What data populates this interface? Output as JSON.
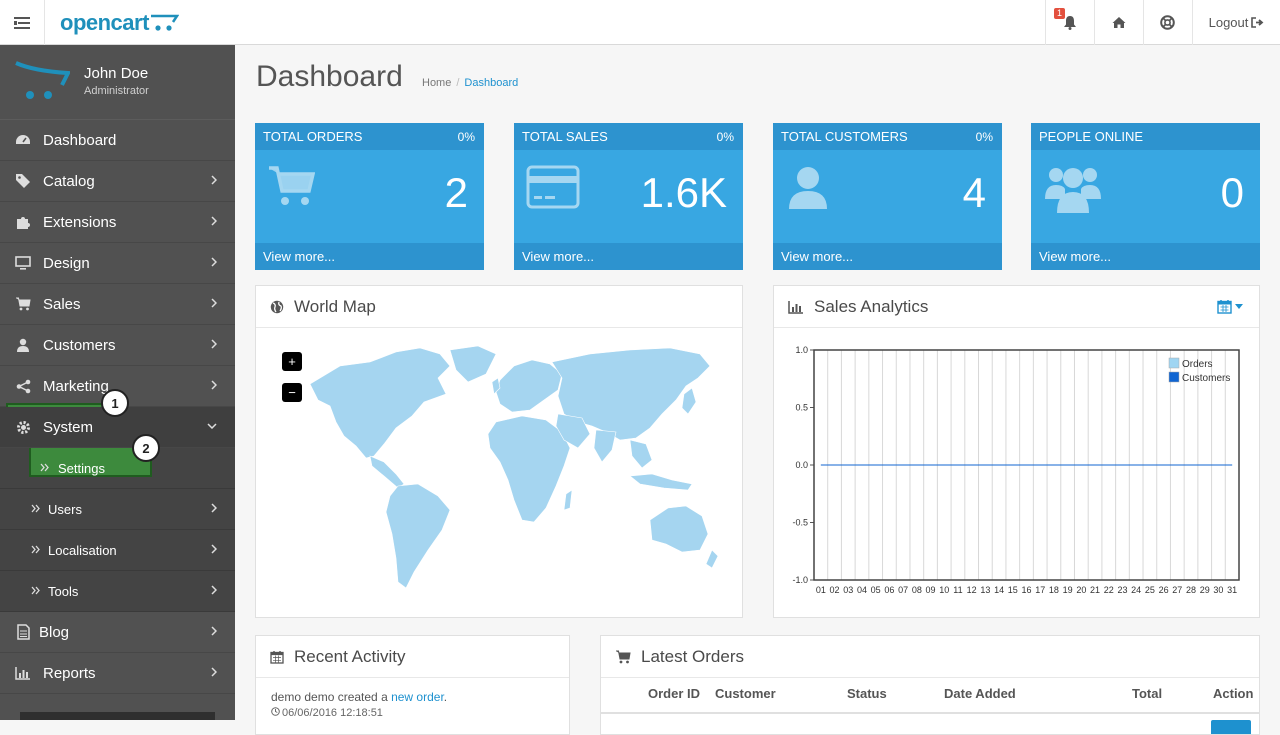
{
  "header": {
    "logo_text": "opencart",
    "notification_count": "1",
    "logout_label": "Logout"
  },
  "sidebar": {
    "profile": {
      "name": "John Doe",
      "role": "Administrator"
    },
    "items": [
      {
        "label": "Dashboard",
        "icon": "dashboard-icon"
      },
      {
        "label": "Catalog",
        "icon": "tags-icon"
      },
      {
        "label": "Extensions",
        "icon": "puzzle-icon"
      },
      {
        "label": "Design",
        "icon": "monitor-icon"
      },
      {
        "label": "Sales",
        "icon": "cart-icon"
      },
      {
        "label": "Customers",
        "icon": "user-icon"
      },
      {
        "label": "Marketing",
        "icon": "share-icon"
      },
      {
        "label": "System",
        "icon": "gear-icon"
      },
      {
        "label": "Blog",
        "icon": "document-icon"
      },
      {
        "label": "Reports",
        "icon": "bar-chart-icon"
      }
    ],
    "system_sub": [
      {
        "label": "Settings"
      },
      {
        "label": "Users"
      },
      {
        "label": "Localisation"
      },
      {
        "label": "Tools"
      }
    ],
    "callouts": [
      "1",
      "2"
    ]
  },
  "main": {
    "title": "Dashboard",
    "breadcrumb": [
      "Home",
      "Dashboard"
    ],
    "tiles": [
      {
        "title": "TOTAL ORDERS",
        "pct": "0%",
        "value": "2",
        "footer": "View more...",
        "icon": "cart-icon"
      },
      {
        "title": "TOTAL SALES",
        "pct": "0%",
        "value": "1.6K",
        "footer": "View more...",
        "icon": "credit-card-icon"
      },
      {
        "title": "TOTAL CUSTOMERS",
        "pct": "0%",
        "value": "4",
        "footer": "View more...",
        "icon": "user-icon"
      },
      {
        "title": "PEOPLE ONLINE",
        "pct": "",
        "value": "0",
        "footer": "View more...",
        "icon": "users-icon"
      }
    ],
    "world_map": {
      "title": "World Map",
      "zoom_in": "+",
      "zoom_out": "−"
    },
    "sales_analytics": {
      "title": "Sales Analytics"
    },
    "recent_activity": {
      "title": "Recent Activity",
      "text_before": "demo demo created a ",
      "link": "new order",
      "text_after": ".",
      "time": "06/06/2016 12:18:51"
    },
    "latest_orders": {
      "title": "Latest Orders",
      "columns": [
        "Order ID",
        "Customer",
        "Status",
        "Date Added",
        "Total",
        "Action"
      ]
    }
  },
  "chart_data": {
    "type": "line",
    "categories": [
      "01",
      "02",
      "03",
      "04",
      "05",
      "06",
      "07",
      "08",
      "09",
      "10",
      "11",
      "12",
      "13",
      "14",
      "15",
      "16",
      "17",
      "18",
      "19",
      "20",
      "21",
      "22",
      "23",
      "24",
      "25",
      "26",
      "27",
      "28",
      "29",
      "30",
      "31"
    ],
    "series": [
      {
        "name": "Orders",
        "color": "#9fd5f2",
        "values": [
          0,
          0,
          0,
          0,
          0,
          0,
          0,
          0,
          0,
          0,
          0,
          0,
          0,
          0,
          0,
          0,
          0,
          0,
          0,
          0,
          0,
          0,
          0,
          0,
          0,
          0,
          0,
          0,
          0,
          0,
          0
        ]
      },
      {
        "name": "Customers",
        "color": "#1065d2",
        "values": [
          0,
          0,
          0,
          0,
          0,
          0,
          0,
          0,
          0,
          0,
          0,
          0,
          0,
          0,
          0,
          0,
          0,
          0,
          0,
          0,
          0,
          0,
          0,
          0,
          0,
          0,
          0,
          0,
          0,
          0,
          0
        ]
      }
    ],
    "ylim": [
      -1.0,
      1.0
    ],
    "yticks": [
      "1.0",
      "0.5",
      "0.0",
      "-0.5",
      "-1.0"
    ],
    "grid": true,
    "legend": "top-right"
  }
}
